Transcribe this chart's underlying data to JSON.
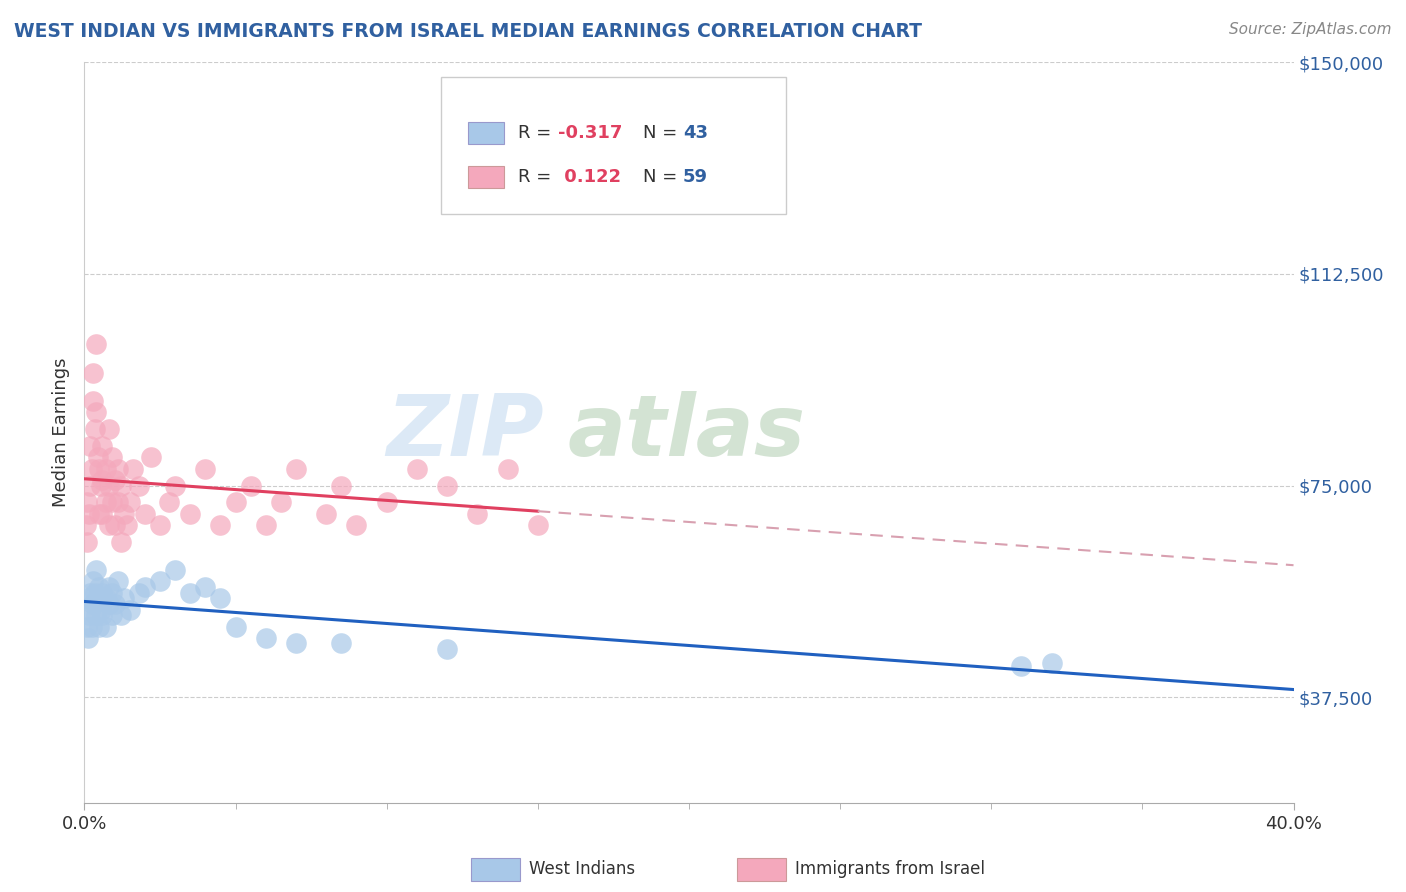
{
  "title": "WEST INDIAN VS IMMIGRANTS FROM ISRAEL MEDIAN EARNINGS CORRELATION CHART",
  "source": "Source: ZipAtlas.com",
  "ylabel": "Median Earnings",
  "xmin": 0.0,
  "xmax": 0.4,
  "ymin": 18750,
  "ymax": 150000,
  "legend_label1": "West Indians",
  "legend_label2": "Immigrants from Israel",
  "r1": -0.317,
  "n1": 43,
  "r2": 0.122,
  "n2": 59,
  "blue_color": "#a8c8e8",
  "pink_color": "#f4a8bc",
  "blue_line_color": "#2060c0",
  "pink_line_color": "#e04060",
  "dash_color": "#d8a0b0",
  "title_color": "#3060a0",
  "source_color": "#888888",
  "ytick_color": "#3060a0",
  "ytick_vals": [
    37500,
    75000,
    112500,
    150000
  ],
  "ytick_labels": [
    "$37,500",
    "$75,000",
    "$112,500",
    "$150,000"
  ],
  "grid_color": "#cccccc",
  "watermark_blue": "#c0d8f0",
  "watermark_green": "#b0ccb0",
  "west_indian_x": [
    0.0008,
    0.001,
    0.0012,
    0.0015,
    0.002,
    0.002,
    0.0025,
    0.003,
    0.003,
    0.0035,
    0.004,
    0.004,
    0.0045,
    0.005,
    0.005,
    0.0055,
    0.006,
    0.006,
    0.007,
    0.007,
    0.008,
    0.008,
    0.009,
    0.009,
    0.01,
    0.011,
    0.012,
    0.013,
    0.015,
    0.018,
    0.02,
    0.025,
    0.03,
    0.035,
    0.04,
    0.045,
    0.05,
    0.06,
    0.07,
    0.085,
    0.12,
    0.31,
    0.32
  ],
  "west_indian_y": [
    50000,
    55000,
    48000,
    52000,
    56000,
    53000,
    50000,
    58000,
    54000,
    56000,
    60000,
    52000,
    55000,
    57000,
    50000,
    53000,
    56000,
    52000,
    55000,
    50000,
    54000,
    57000,
    52000,
    56000,
    54000,
    58000,
    52000,
    55000,
    53000,
    56000,
    57000,
    58000,
    60000,
    56000,
    57000,
    55000,
    50000,
    48000,
    47000,
    47000,
    46000,
    43000,
    43500
  ],
  "israel_x": [
    0.0005,
    0.001,
    0.001,
    0.0015,
    0.002,
    0.002,
    0.0025,
    0.003,
    0.003,
    0.0035,
    0.004,
    0.004,
    0.0045,
    0.005,
    0.005,
    0.0055,
    0.006,
    0.006,
    0.006,
    0.007,
    0.007,
    0.008,
    0.008,
    0.008,
    0.009,
    0.009,
    0.01,
    0.01,
    0.011,
    0.011,
    0.012,
    0.012,
    0.013,
    0.014,
    0.015,
    0.016,
    0.018,
    0.02,
    0.022,
    0.025,
    0.028,
    0.03,
    0.035,
    0.04,
    0.045,
    0.05,
    0.055,
    0.06,
    0.065,
    0.07,
    0.08,
    0.085,
    0.09,
    0.1,
    0.11,
    0.12,
    0.13,
    0.14,
    0.15
  ],
  "israel_y": [
    68000,
    72000,
    65000,
    70000,
    82000,
    75000,
    78000,
    90000,
    95000,
    85000,
    100000,
    88000,
    80000,
    78000,
    70000,
    75000,
    82000,
    76000,
    70000,
    78000,
    72000,
    85000,
    75000,
    68000,
    80000,
    72000,
    76000,
    68000,
    78000,
    72000,
    65000,
    75000,
    70000,
    68000,
    72000,
    78000,
    75000,
    70000,
    80000,
    68000,
    72000,
    75000,
    70000,
    78000,
    68000,
    72000,
    75000,
    68000,
    72000,
    78000,
    70000,
    75000,
    68000,
    72000,
    78000,
    75000,
    70000,
    78000,
    68000
  ]
}
